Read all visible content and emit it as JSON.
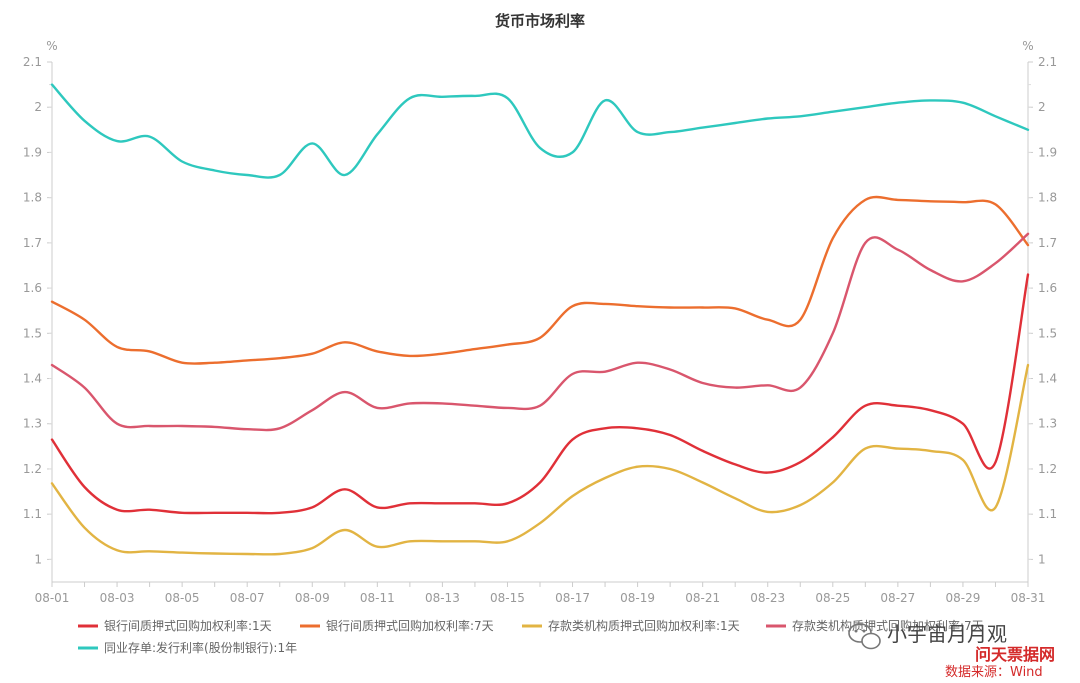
{
  "chart_data": {
    "type": "line",
    "title": "货币市场利率",
    "ylabel_left": "%",
    "ylabel_right": "%",
    "ylim": [
      0.95,
      2.1
    ],
    "yticks": [
      "1",
      "1.1",
      "1.2",
      "1.3",
      "1.4",
      "1.5",
      "1.6",
      "1.7",
      "1.8",
      "1.9",
      "2",
      "2.1"
    ],
    "xlim": [
      1,
      31
    ],
    "xticks": [
      {
        "day": 1,
        "label": "08-01"
      },
      {
        "day": 3,
        "label": "08-03"
      },
      {
        "day": 5,
        "label": "08-05"
      },
      {
        "day": 7,
        "label": "08-07"
      },
      {
        "day": 9,
        "label": "08-09"
      },
      {
        "day": 11,
        "label": "08-11"
      },
      {
        "day": 13,
        "label": "08-13"
      },
      {
        "day": 15,
        "label": "08-15"
      },
      {
        "day": 17,
        "label": "08-17"
      },
      {
        "day": 19,
        "label": "08-19"
      },
      {
        "day": 21,
        "label": "08-21"
      },
      {
        "day": 23,
        "label": "08-23"
      },
      {
        "day": 25,
        "label": "08-25"
      },
      {
        "day": 27,
        "label": "08-27"
      },
      {
        "day": 29,
        "label": "08-29"
      },
      {
        "day": 31,
        "label": "08-31"
      }
    ],
    "grid": false,
    "legend_position": "bottom",
    "series": [
      {
        "name": "银行间质押式回购加权利率:1天",
        "color": "#e03038",
        "x": [
          1,
          2,
          3,
          4,
          5,
          6,
          7,
          8,
          9,
          10,
          11,
          12,
          13,
          14,
          15,
          16,
          17,
          18,
          19,
          20,
          21,
          22,
          23,
          24,
          25,
          26,
          27,
          28,
          29,
          30,
          31
        ],
        "y": [
          1.265,
          1.16,
          1.11,
          1.11,
          1.103,
          1.103,
          1.103,
          1.103,
          1.115,
          1.155,
          1.115,
          1.124,
          1.124,
          1.124,
          1.124,
          1.17,
          1.265,
          1.29,
          1.29,
          1.275,
          1.24,
          1.21,
          1.192,
          1.215,
          1.27,
          1.34,
          1.34,
          1.33,
          1.3,
          1.215,
          1.63
        ]
      },
      {
        "name": "银行间质押式回购加权利率:7天",
        "color": "#ec6e2e",
        "x": [
          1,
          2,
          3,
          4,
          5,
          6,
          7,
          8,
          9,
          10,
          11,
          12,
          13,
          14,
          15,
          16,
          17,
          18,
          19,
          20,
          21,
          22,
          23,
          24,
          25,
          26,
          27,
          28,
          29,
          30,
          31
        ],
        "y": [
          1.57,
          1.53,
          1.47,
          1.46,
          1.435,
          1.435,
          1.44,
          1.445,
          1.455,
          1.48,
          1.46,
          1.45,
          1.455,
          1.465,
          1.475,
          1.49,
          1.56,
          1.565,
          1.56,
          1.557,
          1.557,
          1.555,
          1.53,
          1.53,
          1.71,
          1.795,
          1.795,
          1.792,
          1.79,
          1.785,
          1.695
        ]
      },
      {
        "name": "存款类机构质押式回购加权利率:1天",
        "color": "#e2b443",
        "x": [
          1,
          2,
          3,
          4,
          5,
          6,
          7,
          8,
          9,
          10,
          11,
          12,
          13,
          14,
          15,
          16,
          17,
          18,
          19,
          20,
          21,
          22,
          23,
          24,
          25,
          26,
          27,
          28,
          29,
          30,
          31
        ],
        "y": [
          1.168,
          1.07,
          1.02,
          1.018,
          1.015,
          1.013,
          1.012,
          1.012,
          1.025,
          1.065,
          1.028,
          1.04,
          1.04,
          1.04,
          1.04,
          1.08,
          1.14,
          1.18,
          1.205,
          1.2,
          1.17,
          1.135,
          1.105,
          1.12,
          1.17,
          1.245,
          1.245,
          1.24,
          1.22,
          1.115,
          1.43
        ]
      },
      {
        "name": "存款类机构质押式回购加权利率:7天",
        "color": "#d9566d",
        "x": [
          1,
          2,
          3,
          4,
          5,
          6,
          7,
          8,
          9,
          10,
          11,
          12,
          13,
          14,
          15,
          16,
          17,
          18,
          19,
          20,
          21,
          22,
          23,
          24,
          25,
          26,
          27,
          28,
          29,
          30,
          31
        ],
        "y": [
          1.43,
          1.38,
          1.3,
          1.295,
          1.295,
          1.293,
          1.288,
          1.29,
          1.33,
          1.37,
          1.335,
          1.345,
          1.345,
          1.34,
          1.335,
          1.34,
          1.41,
          1.415,
          1.435,
          1.42,
          1.39,
          1.38,
          1.385,
          1.38,
          1.5,
          1.7,
          1.685,
          1.64,
          1.615,
          1.655,
          1.72
        ]
      },
      {
        "name": "同业存单:发行利率(股份制银行):1年",
        "color": "#2ec8be",
        "x": [
          1,
          2,
          3,
          4,
          5,
          6,
          7,
          8,
          9,
          10,
          11,
          12,
          13,
          14,
          15,
          16,
          17,
          18,
          19,
          20,
          21,
          22,
          23,
          24,
          25,
          26,
          27,
          28,
          29,
          30,
          31
        ],
        "y": [
          2.05,
          1.97,
          1.925,
          1.935,
          1.88,
          1.86,
          1.85,
          1.85,
          1.92,
          1.85,
          1.94,
          2.02,
          2.023,
          2.025,
          2.02,
          1.91,
          1.9,
          2.015,
          1.945,
          1.945,
          1.955,
          1.965,
          1.975,
          1.98,
          1.99,
          2.0,
          2.01,
          2.015,
          2.01,
          1.98,
          1.95
        ]
      }
    ]
  },
  "watermark": {
    "account": "小宇宙月月观",
    "site": "问天票据网"
  },
  "source_note": "数据来源：Wind"
}
